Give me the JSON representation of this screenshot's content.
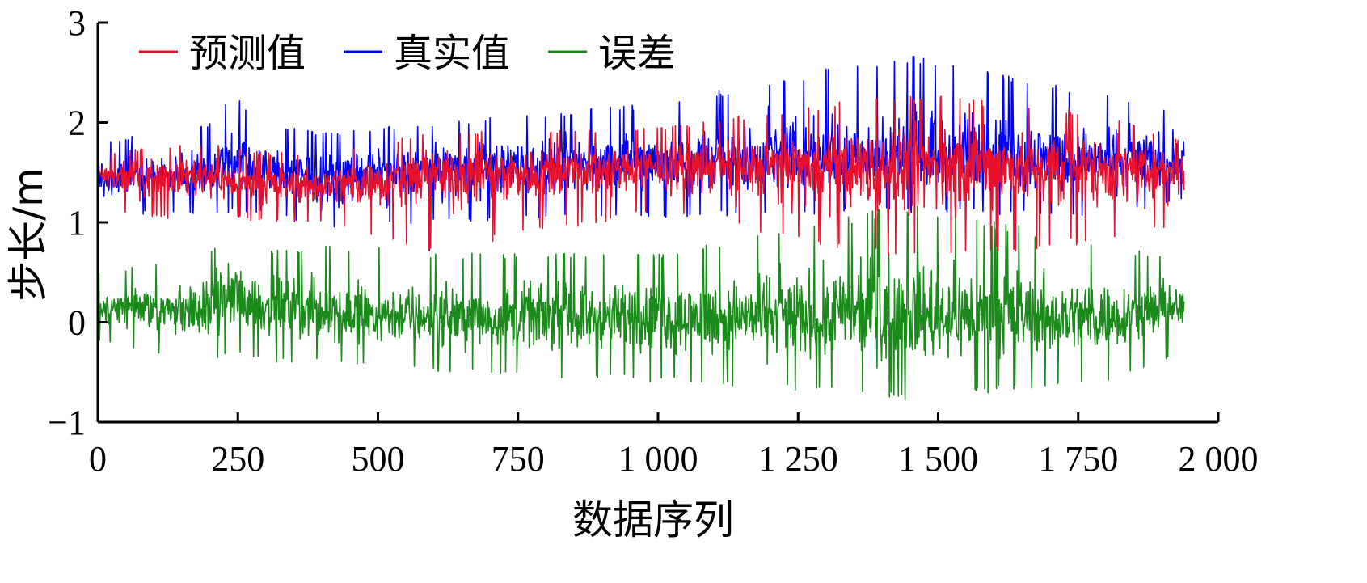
{
  "chart_data": {
    "type": "line",
    "title": "",
    "xlabel": "数据序列",
    "ylabel": "步长/m",
    "xlim": [
      0,
      2000
    ],
    "ylim": [
      -1,
      3
    ],
    "x_ticks": [
      0,
      250,
      500,
      750,
      1000,
      1250,
      1500,
      1750,
      2000
    ],
    "x_tick_labels": [
      "0",
      "250",
      "500",
      "750",
      "1 000",
      "1 250",
      "1 500",
      "1 750",
      "2 000"
    ],
    "y_ticks": [
      -1,
      0,
      1,
      2,
      3
    ],
    "y_tick_labels": [
      "−1",
      "0",
      "1",
      "2",
      "3"
    ],
    "grid": false,
    "legend_position": "top-left",
    "n_points": 1940,
    "series": [
      {
        "name": "预测值",
        "color": "#e8112d",
        "x": [
          0,
          200,
          240,
          300,
          400,
          600,
          1000,
          1440,
          1800,
          1940
        ],
        "values": [
          1.45,
          1.5,
          1.4,
          1.38,
          1.38,
          1.5,
          1.55,
          1.58,
          1.55,
          1.5
        ],
        "min_values": [
          1.1,
          1.0,
          1.05,
          1.0,
          1.0,
          0.7,
          1.1,
          0.6,
          0.8,
          1.0
        ],
        "max_values": [
          1.7,
          1.8,
          1.75,
          1.7,
          1.7,
          1.9,
          1.95,
          2.3,
          2.1,
          1.8
        ]
      },
      {
        "name": "真实值",
        "color": "#0000ff",
        "x": [
          0,
          200,
          240,
          300,
          400,
          600,
          1000,
          1440,
          1800,
          1940
        ],
        "values": [
          1.45,
          1.5,
          1.65,
          1.5,
          1.45,
          1.55,
          1.6,
          1.65,
          1.6,
          1.65
        ],
        "min_values": [
          1.1,
          1.05,
          1.1,
          1.1,
          0.9,
          1.0,
          1.05,
          1.1,
          1.05,
          1.2
        ],
        "max_values": [
          1.8,
          2.0,
          2.3,
          2.0,
          1.9,
          2.0,
          2.2,
          2.7,
          2.3,
          2.1
        ]
      },
      {
        "name": "误差",
        "color": "#1a8a1a",
        "x": [
          0,
          200,
          240,
          300,
          400,
          600,
          1000,
          1440,
          1800,
          1940
        ],
        "values": [
          0.15,
          0.1,
          0.25,
          0.15,
          0.1,
          0.05,
          0.05,
          0.05,
          0.05,
          0.15
        ],
        "min_values": [
          -0.2,
          -0.4,
          -0.3,
          -0.4,
          -0.4,
          -0.5,
          -0.6,
          -0.78,
          -0.6,
          -0.3
        ],
        "max_values": [
          0.5,
          0.7,
          1.05,
          0.7,
          0.8,
          0.7,
          0.7,
          1.2,
          0.8,
          0.6
        ]
      }
    ]
  }
}
